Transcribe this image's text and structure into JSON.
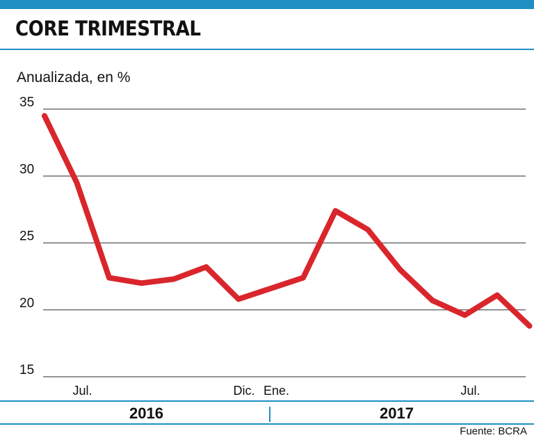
{
  "header": {
    "title": "CORE TRIMESTRAL",
    "unit": "Anualizada, en %"
  },
  "footer": {
    "year_left": "2016",
    "year_right": "2017",
    "source": "Fuente: BCRA"
  },
  "colors": {
    "accent": "#1f8fc4",
    "line": "#d9262c",
    "grid": "#555555"
  },
  "chart_data": {
    "type": "line",
    "title": "CORE TRIMESTRAL",
    "ylabel": "Anualizada, en %",
    "xlabel": "",
    "ylim": [
      15,
      35
    ],
    "yticks": [
      15,
      20,
      25,
      30,
      35
    ],
    "grid": true,
    "x_tick_labels": [
      {
        "label": "Jul.",
        "index": 1
      },
      {
        "label": "Dic.",
        "index": 6
      },
      {
        "label": "Ene.",
        "index": 7
      },
      {
        "label": "Jul.",
        "index": 13
      }
    ],
    "series": [
      {
        "values": [
          34.5,
          29.5,
          22.4,
          22.0,
          22.3,
          23.2,
          20.8,
          21.6,
          22.4,
          27.4,
          26.0,
          23.0,
          20.7,
          19.6,
          21.1,
          18.8
        ]
      }
    ]
  }
}
